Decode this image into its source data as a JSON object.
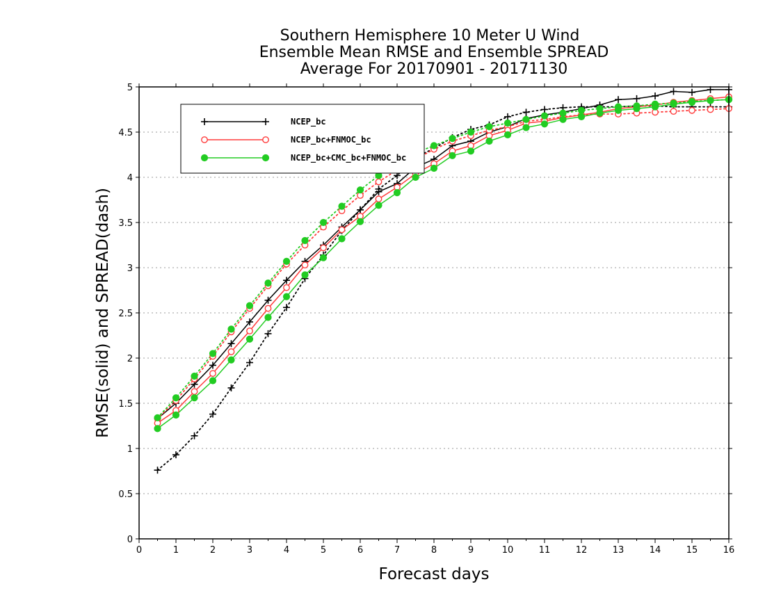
{
  "chart_data": {
    "type": "line",
    "title_lines": [
      "Southern Hemisphere 10 Meter U Wind",
      "Ensemble Mean RMSE and Ensemble SPREAD",
      "Average For 20170901 - 20171130"
    ],
    "xlabel": "Forecast days",
    "ylabel": "RMSE(solid) and SPREAD(dash)",
    "xlim": [
      0,
      16
    ],
    "ylim": [
      0,
      5
    ],
    "xticks": [
      "0",
      "1",
      "2",
      "3",
      "4",
      "5",
      "6",
      "7",
      "8",
      "9",
      "10",
      "11",
      "12",
      "13",
      "14",
      "15",
      "16"
    ],
    "yticks": [
      "0",
      "0.5",
      "1",
      "1.5",
      "2",
      "2.5",
      "3",
      "3.5",
      "4",
      "4.5",
      "5"
    ],
    "grid": "horizontal-dotted",
    "legend_position": "top-left",
    "x": [
      0.5,
      1,
      1.5,
      2,
      2.5,
      3,
      3.5,
      4,
      4.5,
      5,
      5.5,
      6,
      6.5,
      7,
      7.5,
      8,
      8.5,
      9,
      9.5,
      10,
      10.5,
      11,
      11.5,
      12,
      12.5,
      13,
      13.5,
      14,
      14.5,
      15,
      15.5,
      16
    ],
    "series": [
      {
        "name": "NCEP_bc",
        "color": "#000000",
        "marker": "plus",
        "rmse": [
          1.33,
          1.5,
          1.71,
          1.92,
          2.16,
          2.4,
          2.64,
          2.86,
          3.07,
          3.25,
          3.45,
          3.64,
          3.84,
          3.93,
          4.11,
          4.2,
          4.35,
          4.4,
          4.5,
          4.56,
          4.65,
          4.69,
          4.72,
          4.76,
          4.8,
          4.86,
          4.87,
          4.9,
          4.95,
          4.94,
          4.97,
          4.97
        ],
        "spread": [
          0.76,
          0.93,
          1.14,
          1.38,
          1.67,
          1.95,
          2.27,
          2.56,
          2.88,
          3.14,
          3.41,
          3.64,
          3.87,
          4.02,
          4.22,
          4.32,
          4.44,
          4.53,
          4.58,
          4.67,
          4.72,
          4.75,
          4.77,
          4.78,
          4.78,
          4.78,
          4.79,
          4.79,
          4.78,
          4.78,
          4.78,
          4.78
        ]
      },
      {
        "name": "NCEP_bc+FNMOC_bc",
        "color": "#ff3b3b",
        "marker": "open-circle",
        "rmse": [
          1.28,
          1.42,
          1.63,
          1.83,
          2.07,
          2.3,
          2.55,
          2.78,
          3.03,
          3.22,
          3.42,
          3.57,
          3.76,
          3.89,
          4.04,
          4.15,
          4.29,
          4.35,
          4.46,
          4.52,
          4.6,
          4.62,
          4.66,
          4.69,
          4.72,
          4.76,
          4.78,
          4.8,
          4.83,
          4.85,
          4.87,
          4.89
        ],
        "spread": [
          1.33,
          1.53,
          1.77,
          2.02,
          2.29,
          2.55,
          2.8,
          3.04,
          3.25,
          3.45,
          3.63,
          3.8,
          3.95,
          4.08,
          4.2,
          4.31,
          4.4,
          4.46,
          4.52,
          4.56,
          4.62,
          4.64,
          4.67,
          4.69,
          4.7,
          4.7,
          4.71,
          4.72,
          4.73,
          4.74,
          4.75,
          4.76
        ]
      },
      {
        "name": "NCEP_bc+CMC_bc+FNMOC_bc",
        "color": "#22cc22",
        "marker": "filled-circle",
        "rmse": [
          1.22,
          1.37,
          1.56,
          1.75,
          1.98,
          2.21,
          2.45,
          2.68,
          2.92,
          3.11,
          3.32,
          3.51,
          3.69,
          3.83,
          4.0,
          4.1,
          4.24,
          4.29,
          4.4,
          4.47,
          4.55,
          4.59,
          4.64,
          4.67,
          4.71,
          4.74,
          4.76,
          4.78,
          4.81,
          4.83,
          4.85,
          4.86
        ],
        "spread": [
          1.34,
          1.56,
          1.8,
          2.05,
          2.32,
          2.58,
          2.83,
          3.07,
          3.3,
          3.5,
          3.68,
          3.86,
          4.02,
          4.16,
          4.27,
          4.35,
          4.43,
          4.5,
          4.56,
          4.6,
          4.64,
          4.68,
          4.71,
          4.74,
          4.76,
          4.78,
          4.79,
          4.81,
          4.82,
          4.84,
          4.85,
          4.86
        ]
      }
    ]
  }
}
